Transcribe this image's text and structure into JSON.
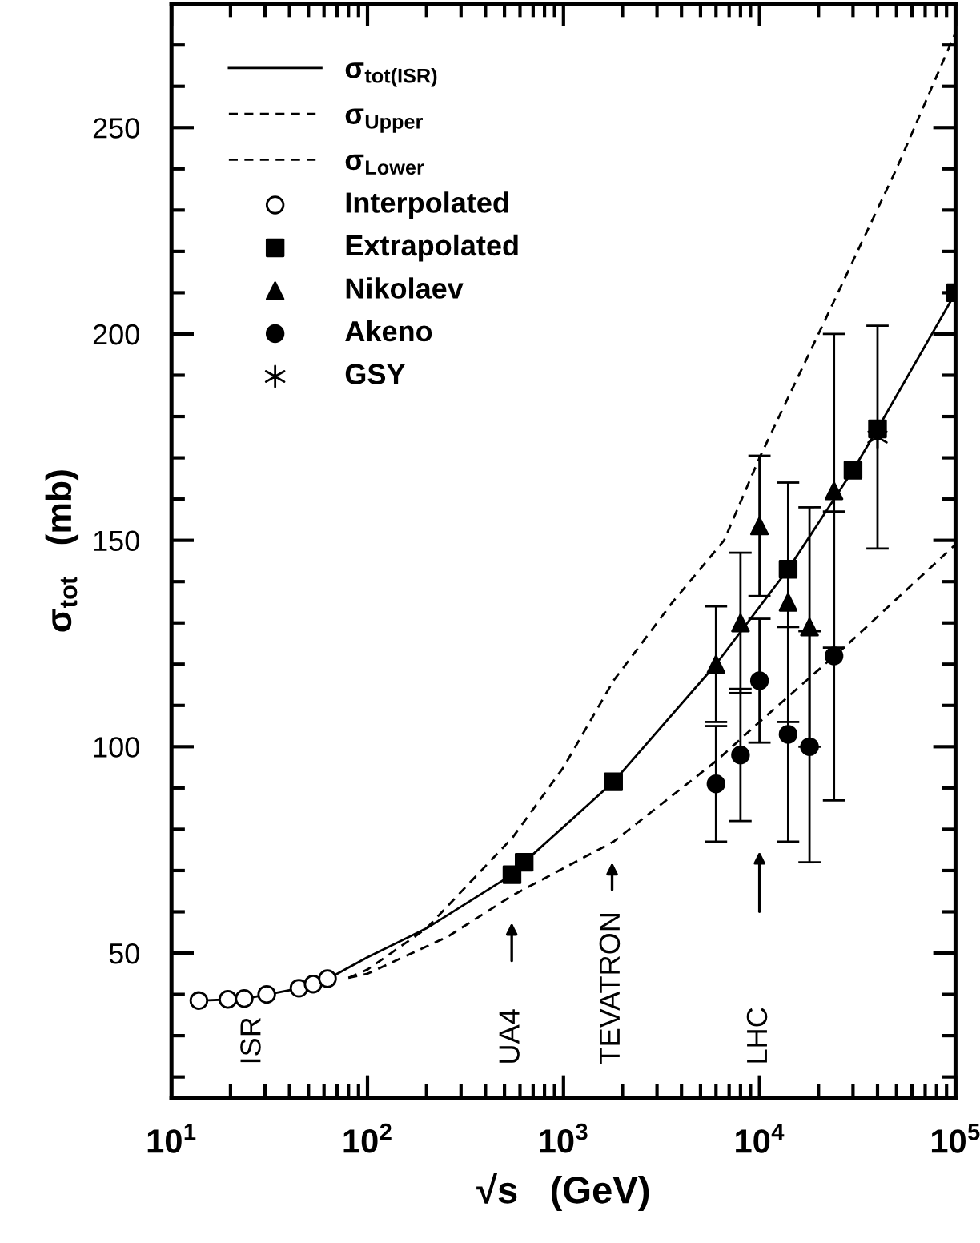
{
  "chart_data": {
    "type": "scatter",
    "xlabel": "√s   (GeV)",
    "ylabel": "σ$_{tot}$   (mb)",
    "log": "x",
    "xlim": [
      10,
      100000
    ],
    "ylim": [
      15,
      280
    ],
    "xticks": [
      {
        "value": 10,
        "label": "10$^{1}$"
      },
      {
        "value": 100,
        "label": "10$^{2}$"
      },
      {
        "value": 1000,
        "label": "10$^{3}$"
      },
      {
        "value": 10000,
        "label": "10$^{4}$"
      },
      {
        "value": 100000,
        "label": "10$^{5}$"
      }
    ],
    "yticks": [
      50,
      100,
      150,
      200,
      250
    ],
    "grid": false,
    "legend": "top left",
    "series": [
      {
        "name": "σ$_{tot(ISR)}$",
        "type": "line",
        "line_style": "solid",
        "marker": "none",
        "color": "#000000",
        "x": [
          14,
          20,
          24,
          31,
          45,
          53,
          63,
          100,
          200,
          546,
          630,
          1800,
          6000,
          14000,
          30000,
          40000,
          100000
        ],
        "values": [
          38.5,
          38.8,
          39.0,
          40.0,
          41.5,
          42.5,
          43.8,
          49,
          56,
          69,
          72,
          91.5,
          120,
          143,
          167,
          177,
          210
        ]
      },
      {
        "name": "σ$_{Upper}$",
        "type": "line",
        "line_style": "dashed",
        "marker": "none",
        "color": "#000000",
        "x": [
          80,
          100,
          200,
          550,
          1000,
          1800,
          3600,
          6600,
          10000,
          20000,
          50000,
          100000
        ],
        "values": [
          44,
          46,
          56,
          78,
          95,
          116,
          135,
          150,
          170,
          200,
          240,
          273
        ]
      },
      {
        "name": "σ$_{Lower}$",
        "type": "line",
        "line_style": "dashed",
        "marker": "none",
        "color": "#000000",
        "x": [
          80,
          100,
          257,
          550,
          1800,
          6000,
          10000,
          30000,
          100000
        ],
        "values": [
          44,
          45,
          54,
          64,
          77,
          96.5,
          106,
          126,
          149
        ]
      },
      {
        "name": "Interpolated",
        "marker": "circle",
        "color": "#ffffff",
        "x": [
          13.8,
          19.4,
          23.5,
          30.6,
          44.7,
          52.8,
          62.5
        ],
        "values": [
          38.5,
          38.8,
          39.0,
          40.0,
          41.5,
          42.5,
          43.8
        ]
      },
      {
        "name": "Extrapolated",
        "marker": "square",
        "color": "#000000",
        "x": [
          546,
          630,
          1800,
          14000,
          30000,
          40000,
          100000
        ],
        "values": [
          69,
          72,
          91.5,
          143,
          167,
          177,
          210
        ]
      },
      {
        "name": "Nikolaev",
        "marker": "triangle",
        "color": "#000000",
        "x": [
          6000,
          8000,
          10000,
          14000,
          18000,
          24000
        ],
        "values": [
          120,
          130,
          153.5,
          135,
          129,
          162
        ],
        "errors": [
          14,
          17,
          17,
          29,
          29,
          38
        ]
      },
      {
        "name": "Akeno",
        "marker": "circle",
        "color": "#000000",
        "x": [
          6000,
          8000,
          10000,
          14000,
          18000,
          24000
        ],
        "values": [
          91,
          98,
          116,
          103,
          100,
          122
        ],
        "errors": [
          14,
          16,
          15,
          26,
          28,
          35
        ]
      },
      {
        "name": "GSY",
        "marker": "cross",
        "color": "#000000",
        "x": [
          40000
        ],
        "values": [
          175
        ],
        "errors": [
          27
        ]
      }
    ],
    "annotations": [
      "ISR",
      "UA4",
      "TEVATRON",
      "LHC"
    ]
  }
}
